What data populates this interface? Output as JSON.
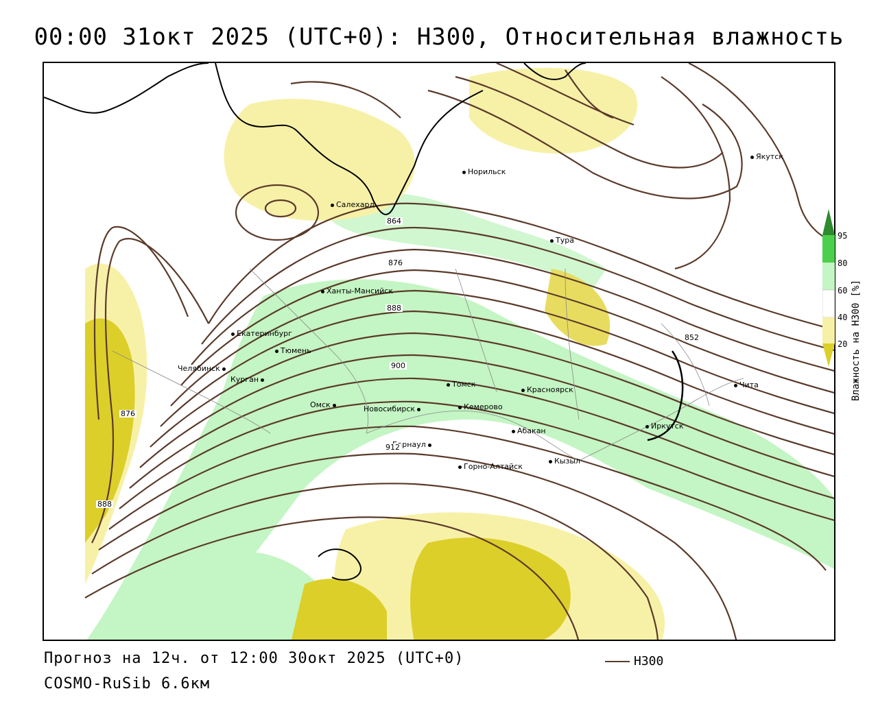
{
  "title": "00:00 31окт 2025 (UTC+0): H300, Относительная влажность",
  "footer": {
    "forecast": "Прогноз на 12ч. от 12:00 30окт 2025 (UTC+0)",
    "model": "COSMO-RuSib 6.6км"
  },
  "legend": {
    "series_label": "H300",
    "line_color": "#5a3a2a"
  },
  "colorbar": {
    "title": "Влажность на H300 [%]",
    "ticks": [
      "95",
      "80",
      "60",
      "40",
      "20"
    ],
    "colors": {
      "c95": "#2e8b2e",
      "c80": "#4ccf4c",
      "c60": "#c4f5c4",
      "c40": "#ffffff",
      "c20": "#f7f1a8",
      "c0": "#dccf2a"
    }
  },
  "cities": [
    {
      "name": "Якутск"
    },
    {
      "name": "Норильск"
    },
    {
      "name": "Салехард"
    },
    {
      "name": "Тура"
    },
    {
      "name": "Ханты-Мансийск"
    },
    {
      "name": "Екатеринбург"
    },
    {
      "name": "Тюмень"
    },
    {
      "name": "Челябинск"
    },
    {
      "name": "Курган"
    },
    {
      "name": "Омск"
    },
    {
      "name": "Новосибирск"
    },
    {
      "name": "Томск"
    },
    {
      "name": "Кемерово"
    },
    {
      "name": "Красноярск"
    },
    {
      "name": "Абакан"
    },
    {
      "name": "Барнаул"
    },
    {
      "name": "Горно-Алтайск"
    },
    {
      "name": "Кызыл"
    },
    {
      "name": "Иркутск"
    },
    {
      "name": "Чита"
    }
  ],
  "contour_labels": [
    "864",
    "876",
    "888",
    "900",
    "912",
    "876",
    "888",
    "852"
  ]
}
